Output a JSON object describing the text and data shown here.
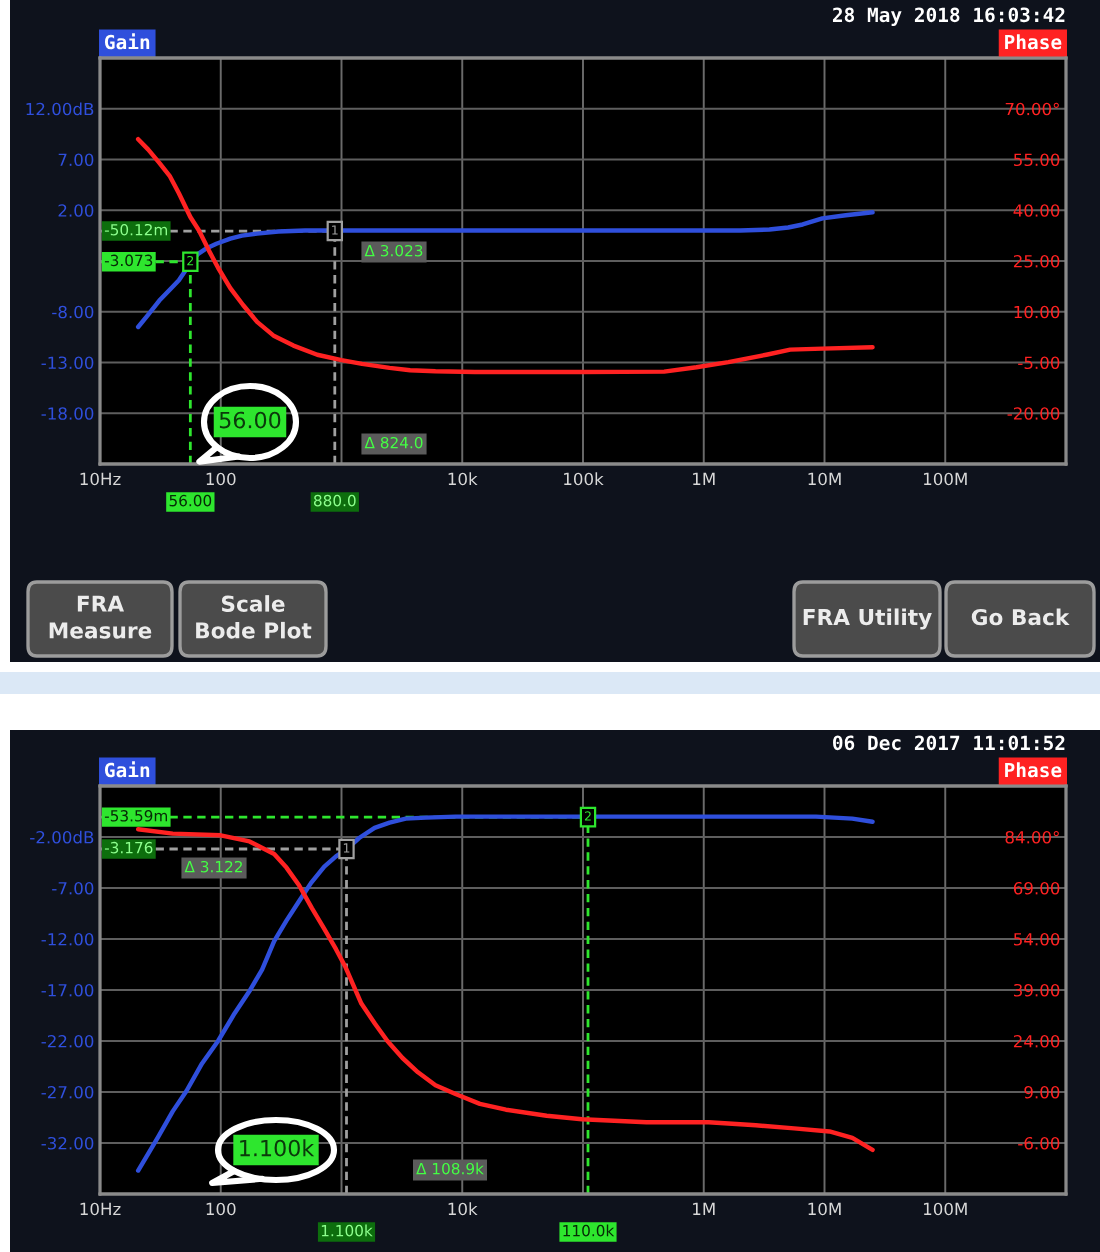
{
  "chart_data": [
    {
      "type": "line",
      "title": "28 May 2018 16:03:42",
      "ylabel": "Gain",
      "y2label": "Phase",
      "log": "x",
      "xlim": [
        10,
        1000000000
      ],
      "xticks": [
        {
          "value": 10,
          "label": "10Hz"
        },
        100,
        {
          "value": 1000,
          "label": null
        },
        {
          "value": 10000,
          "label": "10k"
        },
        {
          "value": 100000,
          "label": "100k"
        },
        {
          "value": 1000000,
          "label": "1M"
        },
        {
          "value": 10000000,
          "label": "10M"
        },
        {
          "value": 100000000,
          "label": "100M"
        }
      ],
      "ylim": [
        -23,
        17
      ],
      "yticks": [
        {
          "value": 12,
          "label": "12.00dB"
        },
        {
          "value": 7,
          "label": "7.00"
        },
        {
          "value": 2,
          "label": "2.00"
        },
        {
          "value": -3,
          "label": null
        },
        {
          "value": -8,
          "label": "-8.00"
        },
        {
          "value": -13,
          "label": "-13.00"
        },
        {
          "value": -18,
          "label": "-18.00"
        }
      ],
      "y2lim": [
        -35,
        85
      ],
      "y2ticks": [
        {
          "value": 70,
          "label": "70.00°"
        },
        {
          "value": 55,
          "label": "55.00"
        },
        {
          "value": 40,
          "label": "40.00"
        },
        {
          "value": 25,
          "label": "25.00"
        },
        {
          "value": 10,
          "label": "10.00"
        },
        {
          "value": -5,
          "label": "-5.00"
        },
        {
          "value": -20,
          "label": "-20.00"
        }
      ],
      "grid": true,
      "series": [
        {
          "color": "#2f4fdc",
          "x": [
            20.7,
            25,
            31,
            38,
            45,
            52,
            56,
            65,
            75,
            92,
            120,
            150,
            200,
            300,
            500,
            1000,
            10000,
            100000,
            1000000,
            2000000,
            3500000,
            5000000,
            6600000,
            9600000,
            15000000,
            25000000
          ],
          "values": [
            -9.5,
            -8.3,
            -6.9,
            -5.8,
            -4.9,
            -3.8,
            -3.1,
            -2.3,
            -1.8,
            -1.3,
            -0.8,
            -0.5,
            -0.3,
            -0.1,
            0,
            0,
            0,
            0,
            0,
            0,
            0.1,
            0.3,
            0.6,
            1.2,
            1.5,
            1.8
          ]
        },
        {
          "color": "#ff2222",
          "axis": "y2",
          "x": [
            20.7,
            25,
            31,
            38,
            45,
            56,
            66,
            80,
            95,
            120,
            153,
            200,
            277,
            400,
            630,
            1000,
            1480,
            2500,
            3700,
            6000,
            12700,
            100000,
            470000,
            870000,
            1600000,
            3300000,
            5200000,
            9600000,
            25000000
          ],
          "values": [
            61,
            58,
            54,
            50,
            45,
            38,
            34,
            28,
            23,
            17,
            12,
            7,
            2.8,
            0,
            -2.7,
            -4.3,
            -5.4,
            -6.6,
            -7.3,
            -7.6,
            -7.8,
            -7.8,
            -7.7,
            -6.4,
            -4.9,
            -2.7,
            -1.2,
            -0.9,
            -0.5
          ]
        }
      ],
      "ref_lines": [
        {
          "axis": "x",
          "value": 880,
          "label": "880.0",
          "color": "#a0a0a0",
          "line_style": "dashed"
        },
        {
          "axis": "y",
          "value": -0.05012,
          "label": "-50.12m",
          "color": "#a0a0a0",
          "line_style": "dashed"
        },
        {
          "axis": "x",
          "value": 56,
          "label": "56.00",
          "color": "#2ee62e",
          "line_style": "dashed"
        },
        {
          "axis": "y",
          "value": -3.073,
          "label": "-3.073",
          "color": "#2ee62e",
          "line_style": "dashed"
        }
      ],
      "annotations": [
        {
          "text": "1",
          "x": 880,
          "y": -0.05012
        },
        {
          "text": "2",
          "x": 56,
          "y": -3.073
        },
        "Δ 3.023",
        "Δ 824.0",
        "56.00",
        "FRA\nMeasure",
        "Scale\nBode Plot",
        "FRA Utility",
        "Go Back"
      ]
    },
    {
      "type": "line",
      "title": "06 Dec 2017 11:01:52",
      "ylabel": "Gain",
      "y2label": "Phase",
      "log": "x",
      "xlim": [
        10,
        1000000000
      ],
      "xticks": [
        {
          "value": 10,
          "label": "10Hz"
        },
        100,
        {
          "value": 1000,
          "label": null
        },
        {
          "value": 10000,
          "label": "10k"
        },
        {
          "value": 100000,
          "label": null
        },
        {
          "value": 1000000,
          "label": "1M"
        },
        {
          "value": 10000000,
          "label": "10M"
        },
        {
          "value": 100000000,
          "label": "100M"
        }
      ],
      "ylim": [
        -37,
        3
      ],
      "yticks": [
        {
          "value": -2,
          "label": "-2.00dB"
        },
        {
          "value": -7,
          "label": "-7.00"
        },
        {
          "value": -12,
          "label": "-12.00"
        },
        {
          "value": -17,
          "label": "-17.00"
        },
        {
          "value": -22,
          "label": "-22.00"
        },
        {
          "value": -27,
          "label": "-27.00"
        },
        {
          "value": -32,
          "label": "-32.00"
        }
      ],
      "y2lim": [
        -21,
        99
      ],
      "y2ticks": [
        {
          "value": 84,
          "label": "84.00°"
        },
        {
          "value": 69,
          "label": "69.00"
        },
        {
          "value": 54,
          "label": "54.00"
        },
        {
          "value": 39,
          "label": "39.00"
        },
        {
          "value": 24,
          "label": "24.00"
        },
        {
          "value": 9,
          "label": "9.00"
        },
        {
          "value": -6,
          "label": "-6.00"
        }
      ],
      "grid": true,
      "series": [
        {
          "color": "#2f4fdc",
          "x": [
            20.7,
            30,
            40,
            52,
            70,
            95,
            130,
            173,
            220,
            277,
            350,
            445,
            560,
            720,
            900,
            1100,
            1400,
            1880,
            2500,
            3400,
            5000,
            8800,
            100000,
            1000000,
            8500000,
            12000000,
            17000000,
            25000000
          ],
          "values": [
            -34.7,
            -31.5,
            -28.9,
            -26.9,
            -24.2,
            -22,
            -19.3,
            -17.1,
            -15,
            -12.2,
            -10.2,
            -8.3,
            -6.5,
            -4.9,
            -3.9,
            -3.2,
            -2.1,
            -1.1,
            -0.6,
            -0.2,
            -0.1,
            0,
            0,
            0,
            0,
            -0.1,
            -0.2,
            -0.5
          ]
        },
        {
          "color": "#ff2222",
          "axis": "y2",
          "x": [
            20.7,
            40,
            100,
            173,
            277,
            350,
            445,
            570,
            720,
            900,
            1070,
            1460,
            1900,
            2400,
            3200,
            4300,
            6000,
            8800,
            14000,
            23000,
            50000,
            98000,
            335000,
            1100000,
            2700000,
            5600000,
            11000000,
            17000000,
            25000000
          ],
          "values": [
            86.3,
            85,
            84.5,
            82.7,
            79,
            75,
            69.8,
            63,
            57,
            51,
            46,
            35,
            29,
            24,
            19,
            14.8,
            11,
            8.4,
            5.5,
            3.8,
            2,
            1,
            0.1,
            0.1,
            -0.8,
            -1.7,
            -2.6,
            -4.5,
            -8
          ]
        }
      ],
      "ref_lines": [
        {
          "axis": "x",
          "value": 1100,
          "label": "1.100k",
          "color": "#a0a0a0",
          "line_style": "dashed"
        },
        {
          "axis": "y",
          "value": -3.176,
          "label": "-3.176",
          "color": "#a0a0a0",
          "line_style": "dashed"
        },
        {
          "axis": "x",
          "value": 110000,
          "label": "110.0k",
          "color": "#2ee62e",
          "line_style": "dashed"
        },
        {
          "axis": "y",
          "value": -0.05359,
          "label": "-53.59m",
          "color": "#2ee62e",
          "line_style": "dashed"
        }
      ],
      "annotations": [
        {
          "text": "1",
          "x": 1100,
          "y": -3.176
        },
        {
          "text": "2",
          "x": 110000,
          "y": -0.05359
        },
        "Δ 3.122",
        "Δ 108.9k",
        "1.100k"
      ]
    }
  ]
}
